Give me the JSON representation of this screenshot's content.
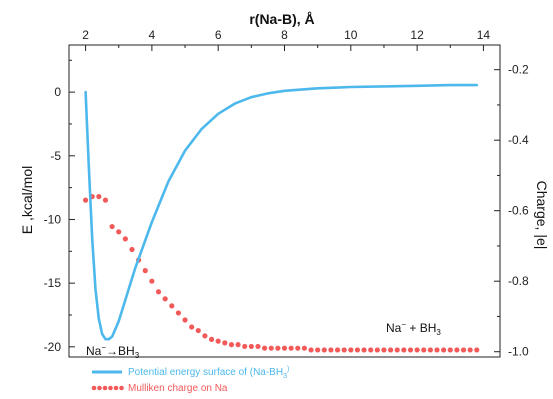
{
  "chart_data": {
    "type": "line",
    "x_axis_top": {
      "label": "r(Na-B), Å",
      "range": [
        1.5,
        14.5
      ],
      "ticks": [
        2,
        4,
        6,
        8,
        10,
        12,
        14
      ]
    },
    "y_axis_left": {
      "label": "E ,kcal/mol",
      "range": [
        -20.8,
        3.7
      ],
      "ticks": [
        0,
        -5,
        -10,
        -15,
        -20
      ]
    },
    "y_axis_right": {
      "label": "Charge, |e|",
      "range": [
        -1.015,
        -0.13
      ],
      "ticks": [
        -0.2,
        -0.4,
        -0.6,
        -0.8,
        -1.0
      ],
      "tick_labels": [
        "-0.2",
        "-0.4",
        "-0.6",
        "-0.8",
        "-1.0"
      ]
    },
    "series": [
      {
        "name": "Potential energy surface of (Na-BH",
        "name_sub": "3",
        "name_sup": ")",
        "style": "line",
        "color": "#4db8ec",
        "axis": "left",
        "x": [
          2.0,
          2.1,
          2.2,
          2.3,
          2.4,
          2.5,
          2.6,
          2.7,
          2.8,
          3.0,
          3.2,
          3.5,
          4.0,
          4.5,
          5.0,
          5.5,
          6.0,
          6.5,
          7.0,
          7.5,
          8.0,
          8.5,
          9.0,
          9.5,
          10.0,
          11.0,
          12.0,
          13.0,
          13.8
        ],
        "y": [
          0,
          -6,
          -11.5,
          -15.5,
          -17.8,
          -19.0,
          -19.4,
          -19.4,
          -19.2,
          -18.0,
          -16.3,
          -13.8,
          -10.2,
          -7.0,
          -4.6,
          -2.9,
          -1.7,
          -0.9,
          -0.4,
          -0.1,
          0.1,
          0.2,
          0.3,
          0.35,
          0.4,
          0.45,
          0.5,
          0.55,
          0.55
        ]
      },
      {
        "name": "Mulliken charge on Na",
        "style": "dots",
        "color": "#f25a5a",
        "axis": "right",
        "x": [
          2.0,
          2.2,
          2.4,
          2.6,
          2.8,
          3.0,
          3.2,
          3.4,
          3.6,
          3.8,
          4.0,
          4.2,
          4.4,
          4.6,
          4.8,
          5.0,
          5.2,
          5.4,
          5.6,
          5.8,
          6.0,
          6.2,
          6.4,
          6.6,
          6.8,
          7.0,
          7.2,
          7.4,
          7.6,
          7.8,
          8.0,
          8.2,
          8.4,
          8.6,
          8.8,
          9.0,
          9.2,
          9.4,
          9.6,
          9.8,
          10.0,
          10.2,
          10.4,
          10.6,
          10.8,
          11.0,
          11.2,
          11.4,
          11.6,
          11.8,
          12.0,
          12.2,
          12.4,
          12.6,
          12.8,
          13.0,
          13.2,
          13.4,
          13.6,
          13.8
        ],
        "y": [
          -0.57,
          -0.56,
          -0.56,
          -0.57,
          -0.645,
          -0.66,
          -0.68,
          -0.71,
          -0.74,
          -0.77,
          -0.8,
          -0.83,
          -0.85,
          -0.87,
          -0.89,
          -0.91,
          -0.93,
          -0.94,
          -0.955,
          -0.965,
          -0.97,
          -0.975,
          -0.98,
          -0.98,
          -0.985,
          -0.985,
          -0.985,
          -0.99,
          -0.99,
          -0.99,
          -0.99,
          -0.99,
          -0.99,
          -0.99,
          -0.995,
          -0.995,
          -0.995,
          -0.995,
          -0.995,
          -0.995,
          -0.995,
          -0.995,
          -0.995,
          -0.995,
          -0.995,
          -0.995,
          -0.995,
          -0.995,
          -0.995,
          -0.995,
          -0.995,
          -0.995,
          -0.995,
          -0.995,
          -0.995,
          -0.995,
          -0.995,
          -0.995,
          -0.995,
          -0.995
        ]
      }
    ],
    "annotations": [
      {
        "id": "left",
        "base": "Na",
        "sup": "−",
        "arrow": "→",
        "tail": "BH",
        "sub": "3"
      },
      {
        "id": "right",
        "base": "Na",
        "sup": "−",
        "arrow": " + ",
        "tail": "BH",
        "sub": "3"
      }
    ],
    "legend": {
      "placement": "bottom-left"
    },
    "grid": false
  }
}
